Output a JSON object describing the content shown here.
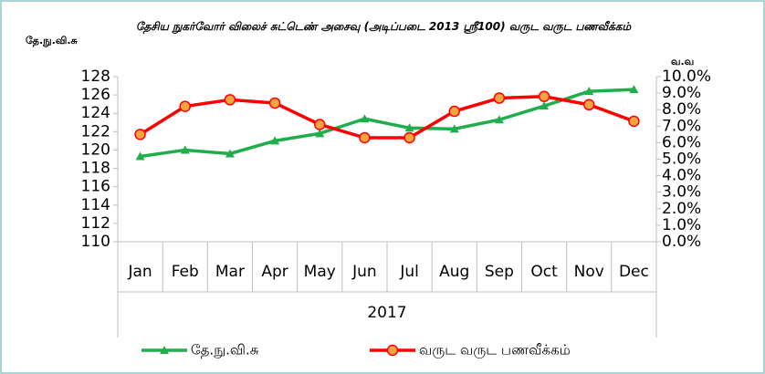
{
  "chart_data": {
    "type": "line",
    "title": "தேசிய நுகர்வோர் விலைச் சுட்டெண் அசைவு (அடிப்படை 2013 ஸ்ரீ100) வருட வருட பணவீக்கம்",
    "y_label": "தே.நு.வி.சு",
    "y2_label": "வ.வ",
    "category_group": "2017",
    "categories": [
      "Jan",
      "Feb",
      "Mar",
      "Apr",
      "May",
      "Jun",
      "Jul",
      "Aug",
      "Sep",
      "Oct",
      "Nov",
      "Dec"
    ],
    "series": [
      {
        "name": "தே.நு.வி.சு",
        "color": "#1fae4b",
        "marker": "triangle",
        "values": [
          119.3,
          120.0,
          119.6,
          121.0,
          121.8,
          123.4,
          122.4,
          122.3,
          123.3,
          124.8,
          126.4,
          126.6
        ]
      },
      {
        "name": "வருட வருட பணவீக்கம்",
        "color": "#ff0000",
        "marker": "circle",
        "marker_fill": "#f2a541",
        "axis": "y2",
        "values": [
          6.5,
          8.2,
          8.6,
          8.4,
          7.1,
          6.3,
          6.3,
          7.9,
          8.7,
          8.8,
          8.3,
          7.3
        ]
      }
    ],
    "ylim": [
      110,
      128
    ],
    "yticks": [
      110,
      112,
      114,
      116,
      118,
      120,
      122,
      124,
      126,
      128
    ],
    "y2lim": [
      0,
      10
    ],
    "y2ticks": [
      {
        "value": 0,
        "label": "0.0%"
      },
      {
        "value": 1,
        "label": "1.0%"
      },
      {
        "value": 2,
        "label": "2.0%"
      },
      {
        "value": 3,
        "label": "3.0%"
      },
      {
        "value": 4,
        "label": "4.0%"
      },
      {
        "value": 5,
        "label": "5.0%"
      },
      {
        "value": 6,
        "label": "6.0%"
      },
      {
        "value": 7,
        "label": "7.0%"
      },
      {
        "value": 8,
        "label": "8.0%"
      },
      {
        "value": 9,
        "label": "9.0%"
      },
      {
        "value": 10,
        "label": "10.0%"
      }
    ],
    "legend": "bottom"
  }
}
